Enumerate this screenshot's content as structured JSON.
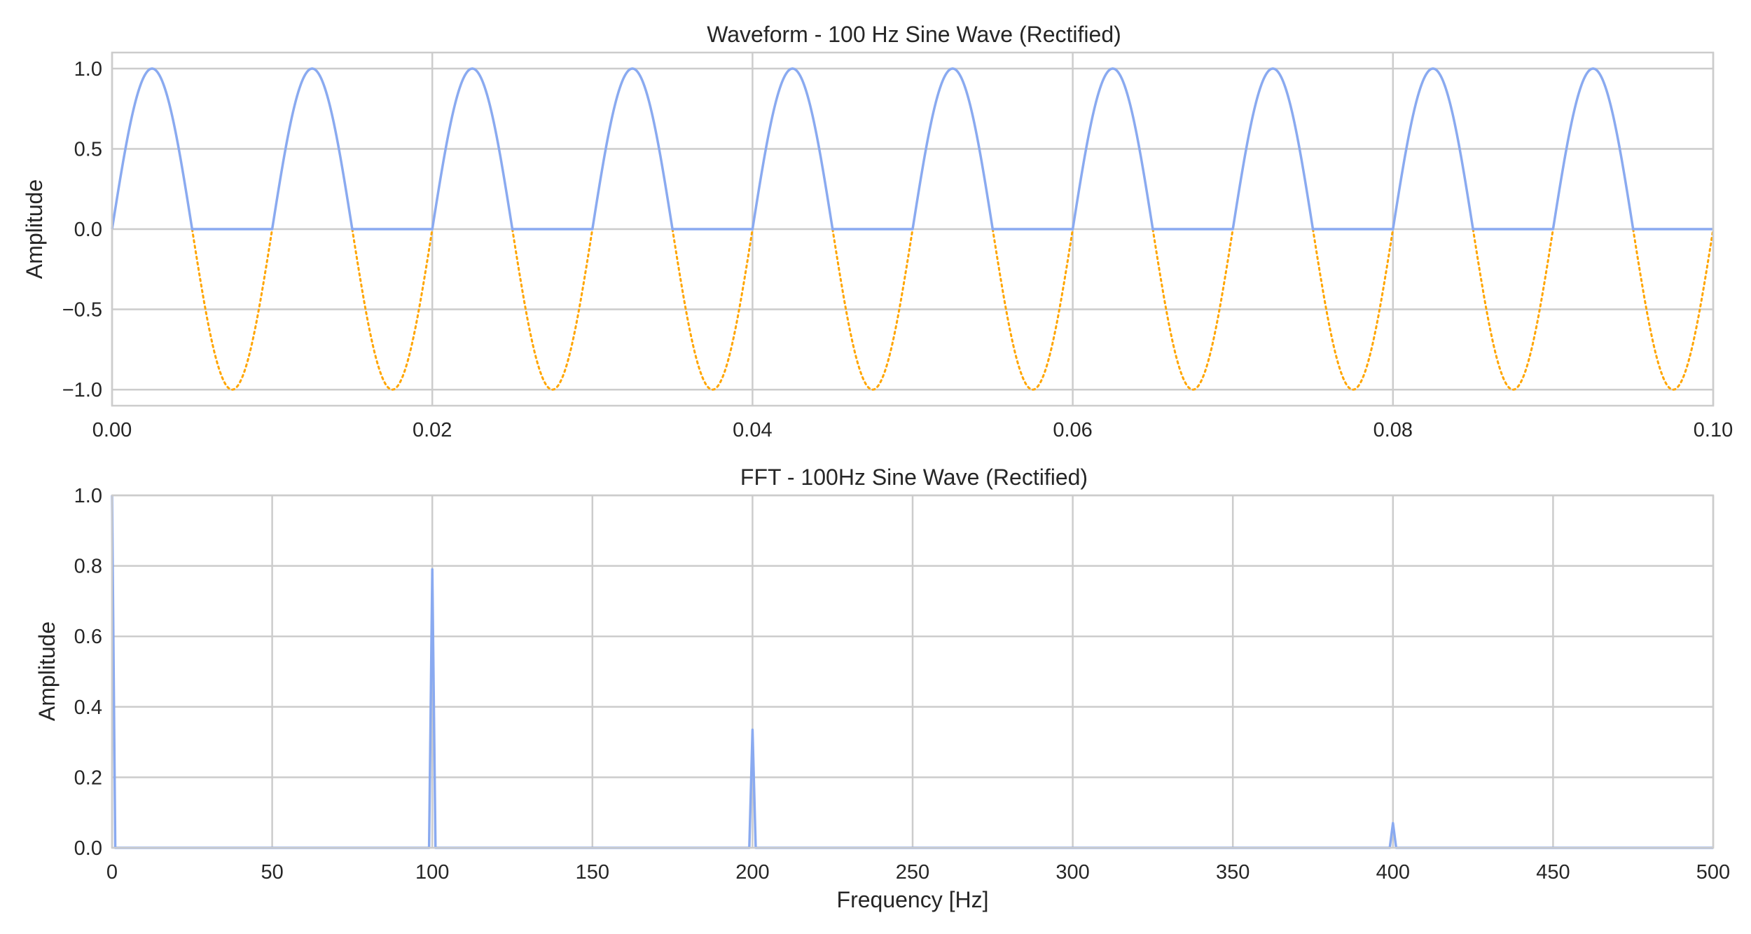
{
  "chart_data": [
    {
      "type": "line",
      "title": "Waveform - 100 Hz Sine Wave (Rectified)",
      "xlabel": "",
      "ylabel": "Amplitude",
      "xlim": [
        0,
        0.1
      ],
      "ylim": [
        -1.1,
        1.1
      ],
      "x_ticks": [
        "0.00",
        "0.02",
        "0.04",
        "0.06",
        "0.08",
        "0.10"
      ],
      "x_tick_values": [
        0,
        0.02,
        0.04,
        0.06,
        0.08,
        0.1
      ],
      "y_ticks": [
        "−1.0",
        "−0.5",
        "0.0",
        "0.5",
        "1.0"
      ],
      "y_tick_values": [
        -1.0,
        -0.5,
        0.0,
        0.5,
        1.0
      ],
      "grid": true,
      "legend": "none",
      "series": [
        {
          "style": "solid",
          "color": "#8aaaf0",
          "frequency_hz": 100,
          "amplitude": 1.0,
          "x_range": [
            0,
            0.1
          ],
          "function": "half-wave rectified sine"
        },
        {
          "style": "dotted",
          "color": "#ffa500",
          "frequency_hz": 100,
          "amplitude": 1.0,
          "x_range": [
            0,
            0.1
          ],
          "function": "negative half-cycles of sine"
        }
      ]
    },
    {
      "type": "line",
      "title": "FFT - 100Hz Sine Wave (Rectified)",
      "xlabel": "Frequency [Hz]",
      "ylabel": "Amplitude",
      "xlim": [
        0,
        500
      ],
      "ylim": [
        0,
        1.0
      ],
      "x_ticks": [
        "0",
        "50",
        "100",
        "150",
        "200",
        "250",
        "300",
        "350",
        "400",
        "450",
        "500"
      ],
      "x_tick_values": [
        0,
        50,
        100,
        150,
        200,
        250,
        300,
        350,
        400,
        450,
        500
      ],
      "y_ticks": [
        "0.0",
        "0.2",
        "0.4",
        "0.6",
        "0.8",
        "1.0"
      ],
      "y_tick_values": [
        0.0,
        0.2,
        0.4,
        0.6,
        0.8,
        1.0
      ],
      "grid": true,
      "legend": "none",
      "series": [
        {
          "style": "solid",
          "color": "#8aaaf0",
          "peaks": [
            {
              "freq": 0,
              "amp": 1.0
            },
            {
              "freq": 100,
              "amp": 0.79
            },
            {
              "freq": 200,
              "amp": 0.335
            },
            {
              "freq": 400,
              "amp": 0.07
            }
          ],
          "peak_half_width_hz": 1
        }
      ]
    }
  ]
}
